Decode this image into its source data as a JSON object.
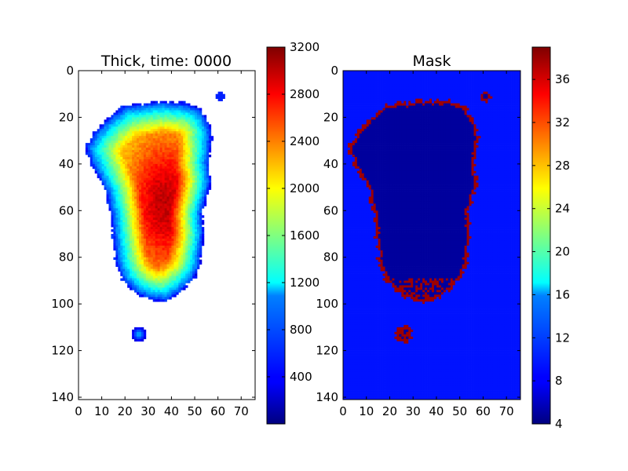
{
  "chart_data": [
    {
      "type": "heatmap",
      "title": "Thick, time: 0000",
      "xlabel": "",
      "ylabel": "",
      "x_ticks": [
        0,
        10,
        20,
        30,
        40,
        50,
        60,
        70
      ],
      "y_ticks": [
        0,
        20,
        40,
        60,
        80,
        100,
        120,
        140
      ],
      "xlim": [
        0,
        76
      ],
      "ylim": [
        141,
        0
      ],
      "colormap": "jet",
      "colorbar": {
        "vmin": 0,
        "vmax": 3200,
        "ticks": [
          400,
          800,
          1200,
          1600,
          2000,
          2400,
          2800,
          3200
        ]
      },
      "masked_background": "white",
      "features": [
        {
          "kind": "main_ice_sheet",
          "x_range": [
            3,
            58
          ],
          "y_range": [
            13,
            99
          ],
          "peak_value": 3000,
          "peak_center": [
            37,
            57
          ]
        },
        {
          "kind": "small_ice_cap",
          "center": [
            26,
            113
          ],
          "peak_value": 900
        },
        {
          "kind": "ice_fragment",
          "center": [
            61,
            11
          ]
        }
      ]
    },
    {
      "type": "heatmap",
      "title": "Mask",
      "xlabel": "",
      "ylabel": "",
      "x_ticks": [
        0,
        10,
        20,
        30,
        40,
        50,
        60,
        70
      ],
      "y_ticks": [
        0,
        20,
        40,
        60,
        80,
        100,
        120,
        140
      ],
      "xlim": [
        0,
        76
      ],
      "ylim": [
        141,
        0
      ],
      "colormap": "jet",
      "colorbar": {
        "vmin": 4,
        "vmax": 39,
        "ticks": [
          4,
          8,
          12,
          16,
          20,
          24,
          28,
          32,
          36
        ]
      },
      "categories": [
        {
          "meaning": "background ocean",
          "value": 9
        },
        {
          "meaning": "interior ice",
          "value": 5
        },
        {
          "meaning": "margin",
          "value": 38
        }
      ]
    }
  ],
  "colors": {
    "jet_low": "#00007f",
    "jet_high": "#7f0000",
    "background": "#ffffff"
  }
}
